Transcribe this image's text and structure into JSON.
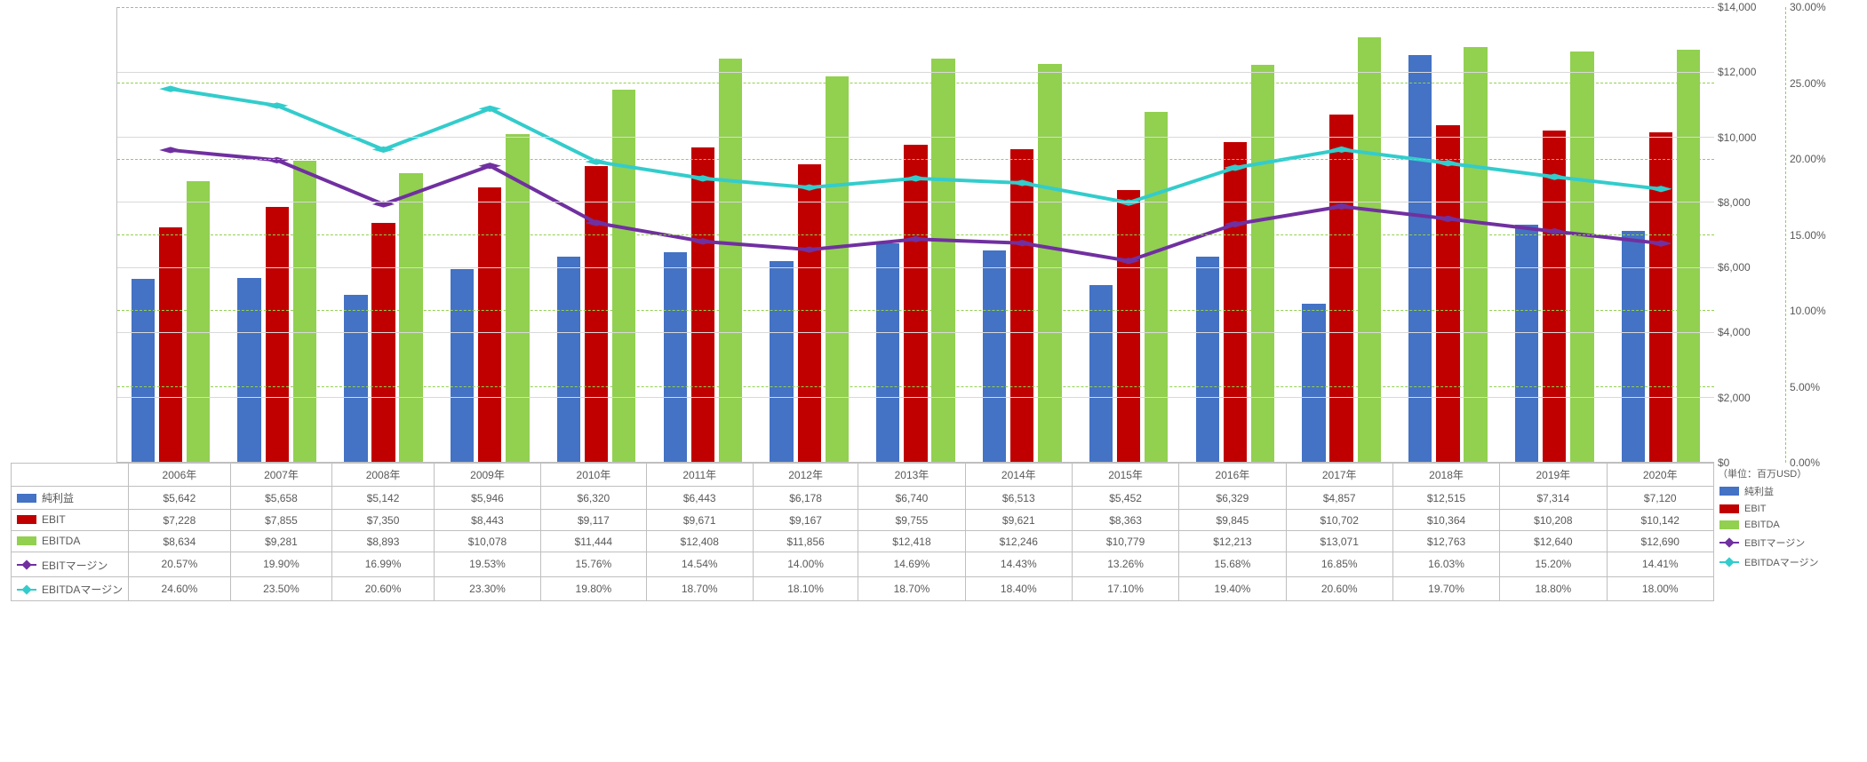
{
  "unit_label": "（単位：百万USD）",
  "categories": [
    "2006年",
    "2007年",
    "2008年",
    "2009年",
    "2010年",
    "2011年",
    "2012年",
    "2013年",
    "2014年",
    "2015年",
    "2016年",
    "2017年",
    "2018年",
    "2019年",
    "2020年"
  ],
  "series": [
    {
      "key": "net",
      "label": "純利益",
      "type": "bar",
      "color": "#4472c4",
      "axis": "left",
      "values": [
        5642,
        5658,
        5142,
        5946,
        6320,
        6443,
        6178,
        6740,
        6513,
        5452,
        6329,
        4857,
        12515,
        7314,
        7120
      ],
      "display": [
        "$5,642",
        "$5,658",
        "$5,142",
        "$5,946",
        "$6,320",
        "$6,443",
        "$6,178",
        "$6,740",
        "$6,513",
        "$5,452",
        "$6,329",
        "$4,857",
        "$12,515",
        "$7,314",
        "$7,120"
      ]
    },
    {
      "key": "ebit",
      "label": "EBIT",
      "type": "bar",
      "color": "#c00000",
      "axis": "left",
      "values": [
        7228,
        7855,
        7350,
        8443,
        9117,
        9671,
        9167,
        9755,
        9621,
        8363,
        9845,
        10702,
        10364,
        10208,
        10142
      ],
      "display": [
        "$7,228",
        "$7,855",
        "$7,350",
        "$8,443",
        "$9,117",
        "$9,671",
        "$9,167",
        "$9,755",
        "$9,621",
        "$8,363",
        "$9,845",
        "$10,702",
        "$10,364",
        "$10,208",
        "$10,142"
      ]
    },
    {
      "key": "ebitda",
      "label": "EBITDA",
      "type": "bar",
      "color": "#92d050",
      "axis": "left",
      "values": [
        8634,
        9281,
        8893,
        10078,
        11444,
        12408,
        11856,
        12418,
        12246,
        10779,
        12213,
        13071,
        12763,
        12640,
        12690
      ],
      "display": [
        "$8,634",
        "$9,281",
        "$8,893",
        "$10,078",
        "$11,444",
        "$12,408",
        "$11,856",
        "$12,418",
        "$12,246",
        "$10,779",
        "$12,213",
        "$13,071",
        "$12,763",
        "$12,640",
        "$12,690"
      ]
    },
    {
      "key": "ebitm",
      "label": "EBITマージン",
      "type": "line",
      "color": "#7030a0",
      "axis": "right",
      "values": [
        20.57,
        19.9,
        16.99,
        19.53,
        15.76,
        14.54,
        14.0,
        14.69,
        14.43,
        13.26,
        15.68,
        16.85,
        16.03,
        15.2,
        14.41
      ],
      "display": [
        "20.57%",
        "19.90%",
        "16.99%",
        "19.53%",
        "15.76%",
        "14.54%",
        "14.00%",
        "14.69%",
        "14.43%",
        "13.26%",
        "15.68%",
        "16.85%",
        "16.03%",
        "15.20%",
        "14.41%"
      ]
    },
    {
      "key": "ebitdam",
      "label": "EBITDAマージン",
      "type": "line",
      "color": "#33cccc",
      "axis": "right",
      "values": [
        24.6,
        23.5,
        20.6,
        23.3,
        19.8,
        18.7,
        18.1,
        18.7,
        18.4,
        17.1,
        19.4,
        20.6,
        19.7,
        18.8,
        18.0
      ],
      "display": [
        "24.60%",
        "23.50%",
        "20.60%",
        "23.30%",
        "19.80%",
        "18.70%",
        "18.10%",
        "18.70%",
        "18.40%",
        "17.10%",
        "19.40%",
        "20.60%",
        "19.70%",
        "18.80%",
        "18.00%"
      ]
    }
  ],
  "left_axis": {
    "min": 0,
    "max": 14000,
    "step": 2000,
    "labels": [
      "",
      "",
      "",
      "",
      "",
      "",
      "",
      ""
    ]
  },
  "right_axis_usd": {
    "min": 0,
    "max": 14000,
    "step": 2000,
    "labels": [
      "$0",
      "$2,000",
      "$4,000",
      "$6,000",
      "$8,000",
      "$10,000",
      "$12,000",
      "$14,000"
    ]
  },
  "right_axis_pct": {
    "min": 0,
    "max": 30,
    "step": 5,
    "labels": [
      "0.00%",
      "5.00%",
      "10.00%",
      "15.00%",
      "20.00%",
      "25.00%",
      "30.00%"
    ]
  }
}
